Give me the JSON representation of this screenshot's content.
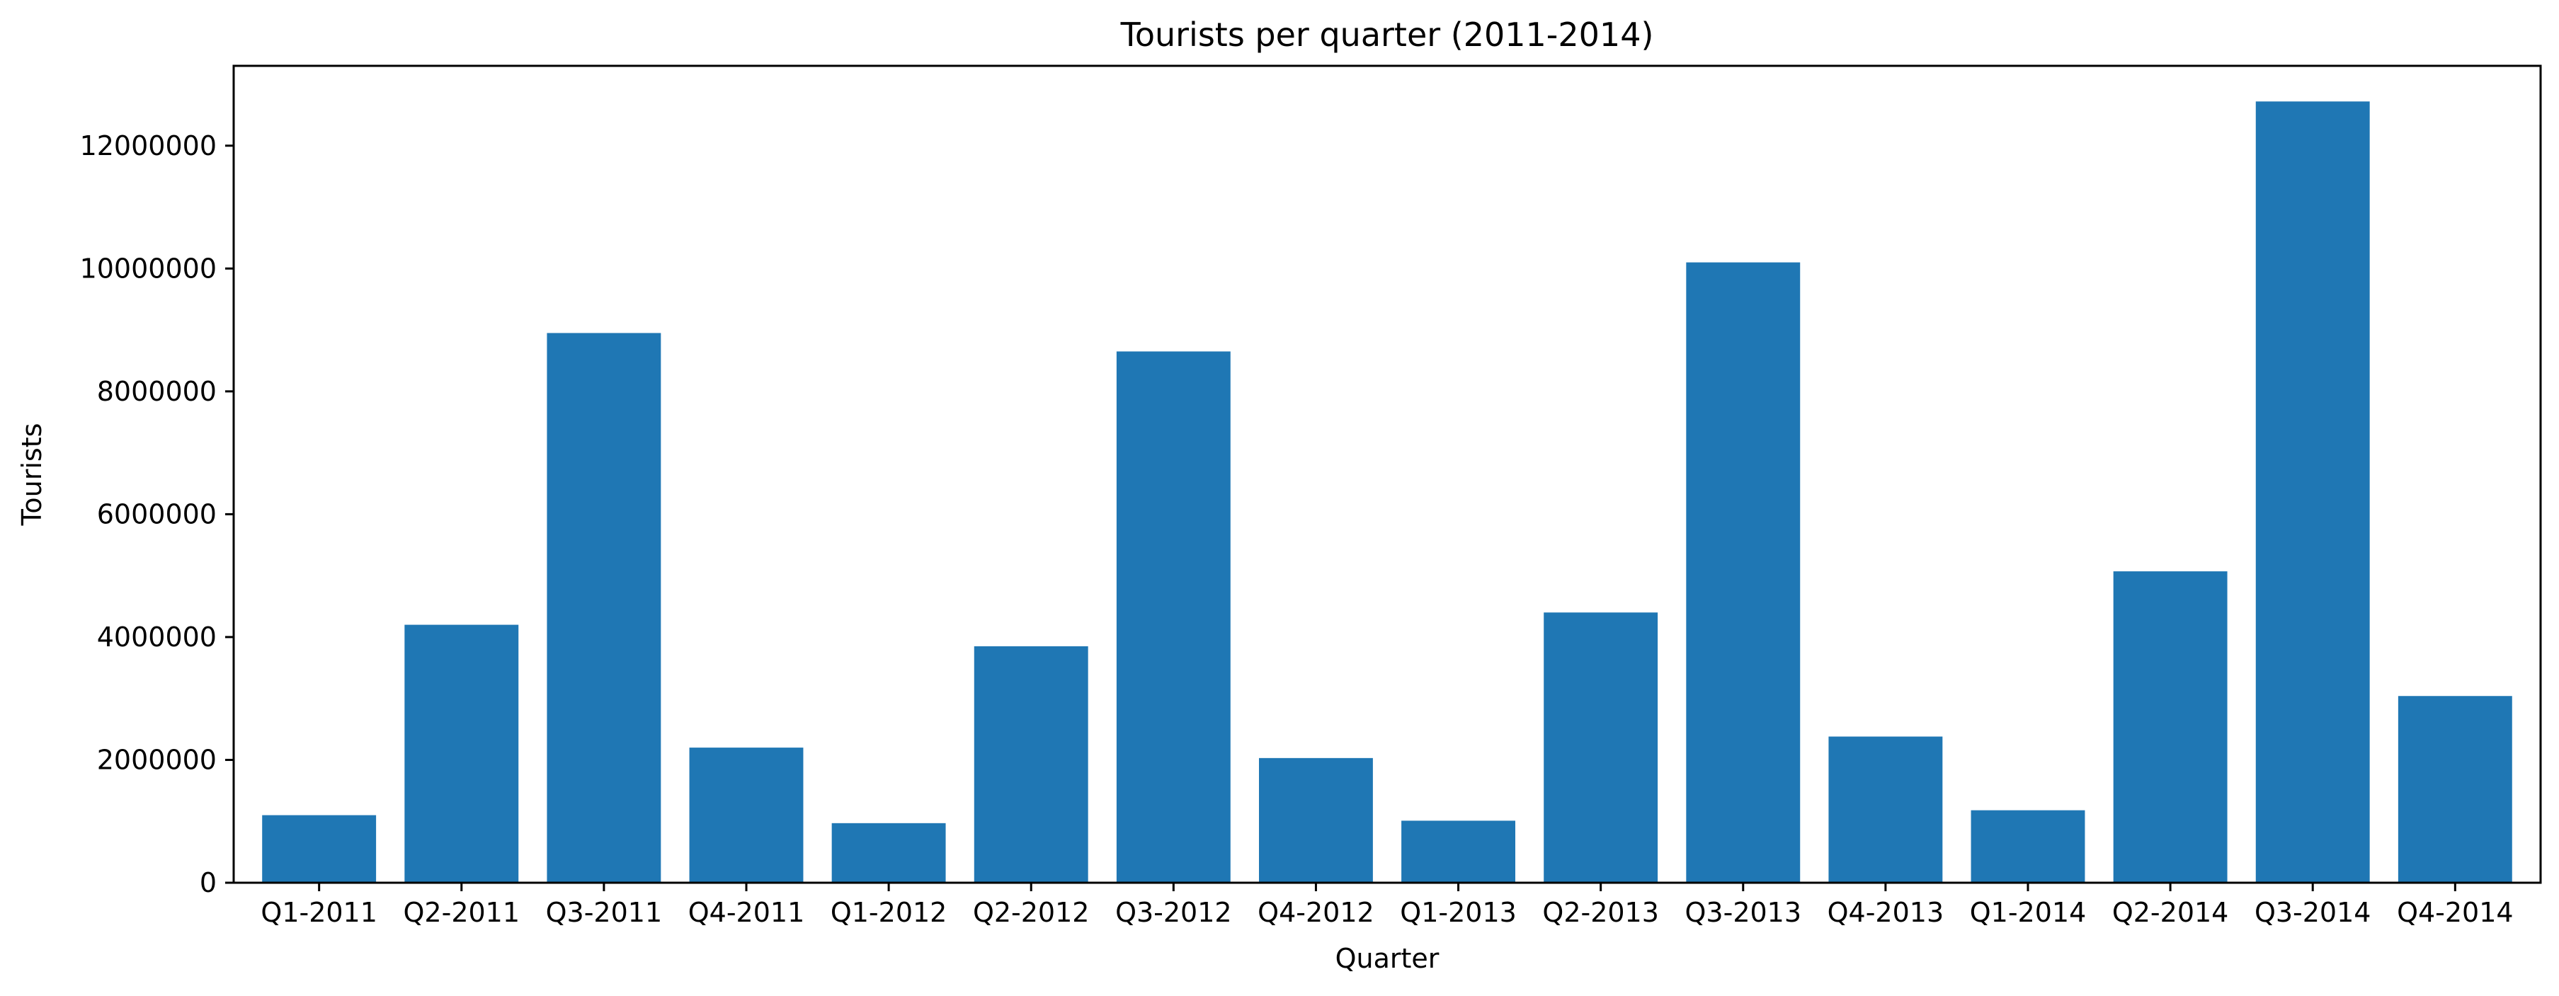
{
  "chart_data": {
    "type": "bar",
    "title": "Tourists per quarter (2011-2014)",
    "xlabel": "Quarter",
    "ylabel": "Tourists",
    "categories": [
      "Q1-2011",
      "Q2-2011",
      "Q3-2011",
      "Q4-2011",
      "Q1-2012",
      "Q2-2012",
      "Q3-2012",
      "Q4-2012",
      "Q1-2013",
      "Q2-2013",
      "Q3-2013",
      "Q4-2013",
      "Q1-2014",
      "Q2-2014",
      "Q3-2014",
      "Q4-2014"
    ],
    "values": [
      1100000,
      4200000,
      8950000,
      2200000,
      970000,
      3850000,
      8650000,
      2030000,
      1010000,
      4400000,
      10100000,
      2380000,
      1180000,
      5070000,
      12720000,
      3040000
    ],
    "ylim": [
      0,
      13300000
    ],
    "yticks": [
      0,
      2000000,
      4000000,
      6000000,
      8000000,
      10000000,
      12000000
    ],
    "ytick_labels": [
      "0",
      "2000000",
      "4000000",
      "6000000",
      "8000000",
      "10000000",
      "12000000"
    ],
    "grid": false,
    "colors": {
      "bar": "#1f77b4",
      "axis": "#000000",
      "background": "#ffffff"
    }
  }
}
